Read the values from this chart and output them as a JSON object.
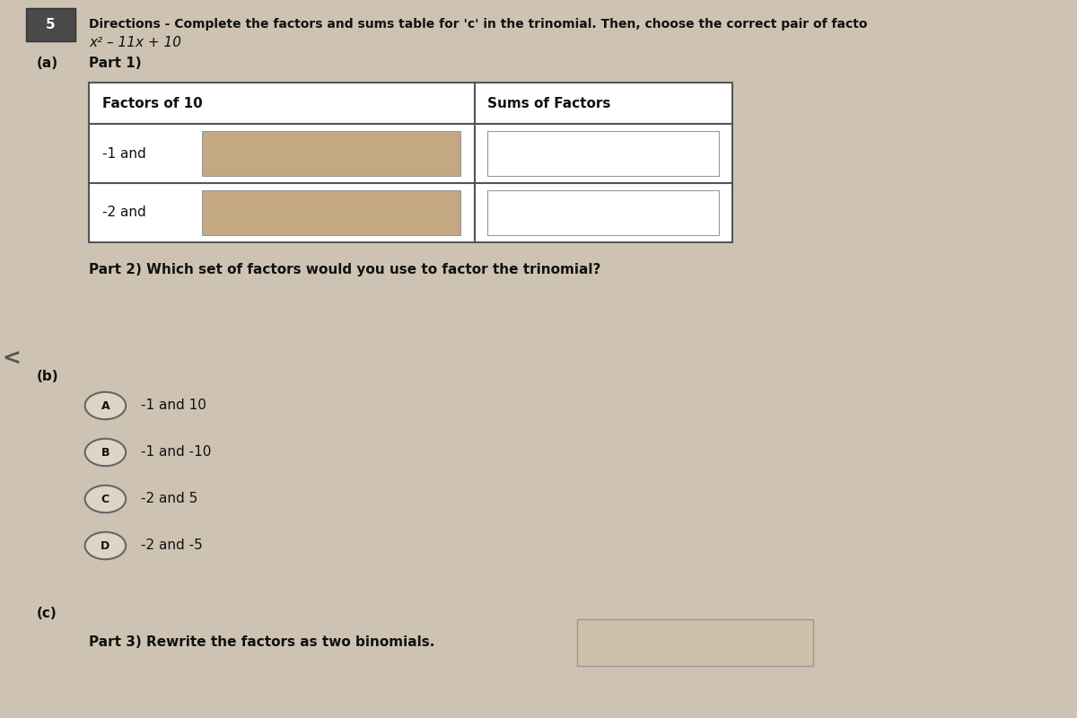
{
  "bg_color": "#cec3b2",
  "question_num": "5",
  "directions": "Directions - Complete the factors and sums table for 'c' in the trinomial. Then, choose the correct pair of facto",
  "trinomial": "x² – 11x + 10",
  "part_a_label": "(a)",
  "part1_label": "Part 1)",
  "table_header_factors": "Factors of 10",
  "table_header_sums": "Sums of Factors",
  "row1_prefix": "-1 and",
  "row2_prefix": "-2 and",
  "part2_label": "Part 2) Which set of factors would you use to factor the trinomial?",
  "part_b_label": "(b)",
  "choices": [
    {
      "letter": "A",
      "text": "-1 and 10"
    },
    {
      "letter": "B",
      "text": "-1 and -10"
    },
    {
      "letter": "C",
      "text": "-2 and 5"
    },
    {
      "letter": "D",
      "text": "-2 and -5"
    }
  ],
  "part_c_label": "(c)",
  "part3_label": "Part 3) Rewrite the factors as two binomials.",
  "input_box_color": "#c4a882",
  "table_border_color": "#555555",
  "header_bg": "#ffffff",
  "row_bg": "#ffffff",
  "answer_box_color": "#cfc0aa",
  "choice_circle_color": "#ddd5c5"
}
